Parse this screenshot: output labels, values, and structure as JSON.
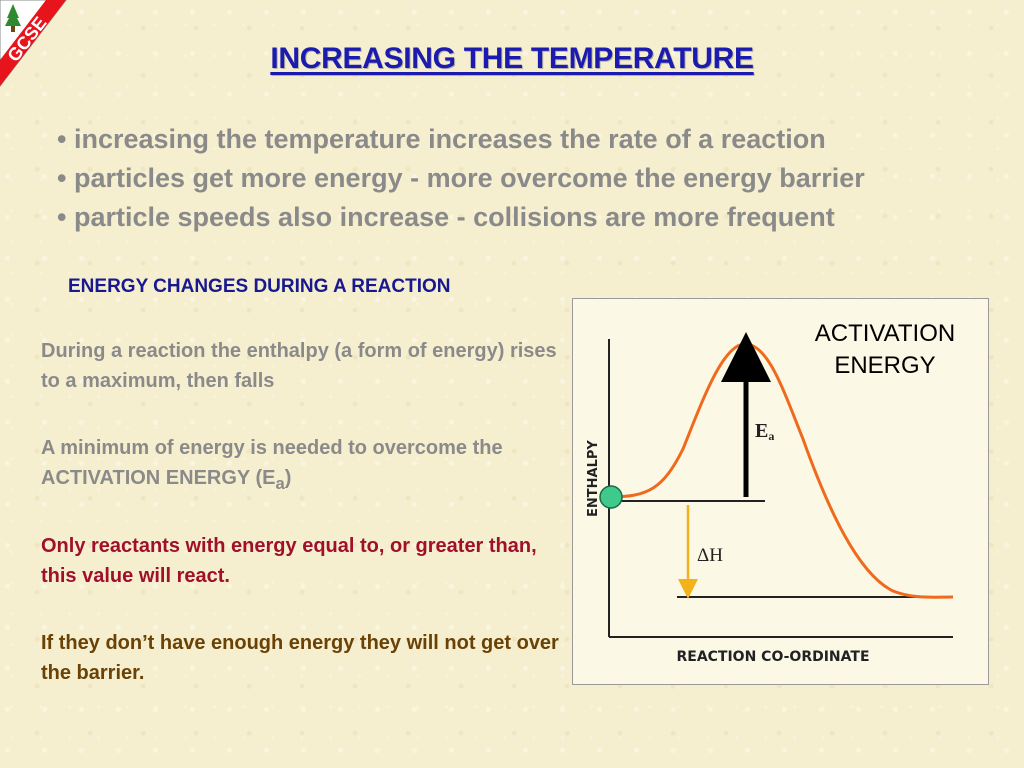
{
  "badge": {
    "text": "GCSE"
  },
  "title": "INCREASING THE TEMPERATURE",
  "bullets": [
    "• increasing the temperature increases the rate of a reaction",
    "• particles get more energy - more overcome the energy barrier",
    "• particle speeds also increase - collisions are more frequent"
  ],
  "subheading": "ENERGY CHANGES DURING A REACTION",
  "paragraphs": {
    "p1": "During a reaction the enthalpy (a form of energy) rises to a maximum, then falls",
    "p2_before": "A minimum of energy is needed to overcome the ACTIVATION ENERGY (E",
    "p2_sub": "a",
    "p2_after": ")",
    "p3": "Only reactants with energy equal to, or greater than, this value will react.",
    "p4": "If they don’t have enough energy they will not get over the barrier."
  },
  "diagram": {
    "activation_label_1": "ACTIVATION",
    "activation_label_2": "ENERGY",
    "y_axis_label": "ENTHALPY",
    "x_axis_label": "REACTION CO-ORDINATE",
    "ea_symbol": "E",
    "ea_sub": "a",
    "dh_label": "ΔH",
    "colors": {
      "curve": "#f06a1e",
      "arrow": "#000000",
      "dh_arrow": "#f2b21a",
      "particle": "#3fc98a"
    }
  }
}
